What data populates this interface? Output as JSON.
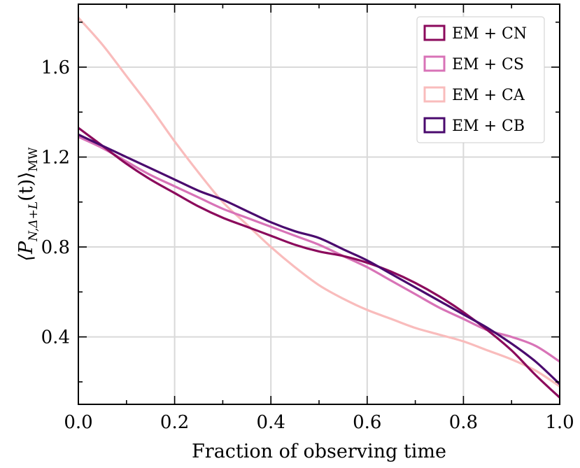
{
  "chart_data": {
    "type": "line",
    "title": "",
    "xlabel": "Fraction of observing time",
    "ylabel_main": "⟨P",
    "ylabel_sub": "N,Δ+L",
    "ylabel_mid": "(t)⟩",
    "ylabel_sub2": "MW",
    "xlim": [
      0.0,
      1.0
    ],
    "ylim": [
      0.1,
      1.88
    ],
    "xticks": [
      0.0,
      0.2,
      0.4,
      0.6,
      0.8,
      1.0
    ],
    "xtick_labels": [
      "0.0",
      "0.2",
      "0.4",
      "0.6",
      "0.8",
      "1.0"
    ],
    "yticks": [
      0.4,
      0.8,
      1.2,
      1.6
    ],
    "ytick_labels": [
      "0.4",
      "0.8",
      "1.2",
      "1.6"
    ],
    "grid": true,
    "legend_position": "top-right",
    "series": [
      {
        "name": "EM + CN",
        "color": "#8b0a5c",
        "x": [
          0.0,
          0.05,
          0.1,
          0.15,
          0.2,
          0.25,
          0.3,
          0.35,
          0.4,
          0.45,
          0.5,
          0.55,
          0.6,
          0.65,
          0.7,
          0.75,
          0.8,
          0.85,
          0.9,
          0.95,
          1.0
        ],
        "y": [
          1.33,
          1.25,
          1.17,
          1.1,
          1.04,
          0.98,
          0.93,
          0.89,
          0.85,
          0.81,
          0.78,
          0.76,
          0.73,
          0.69,
          0.64,
          0.58,
          0.51,
          0.43,
          0.34,
          0.23,
          0.13
        ]
      },
      {
        "name": "EM + CS",
        "color": "#d873b7",
        "x": [
          0.0,
          0.05,
          0.1,
          0.15,
          0.2,
          0.25,
          0.3,
          0.35,
          0.4,
          0.45,
          0.5,
          0.55,
          0.6,
          0.65,
          0.7,
          0.75,
          0.8,
          0.85,
          0.9,
          0.95,
          1.0
        ],
        "y": [
          1.29,
          1.24,
          1.18,
          1.12,
          1.07,
          1.02,
          0.97,
          0.93,
          0.89,
          0.85,
          0.81,
          0.76,
          0.71,
          0.65,
          0.59,
          0.53,
          0.48,
          0.43,
          0.4,
          0.36,
          0.29
        ]
      },
      {
        "name": "EM + CA",
        "color": "#f9bcbc",
        "x": [
          0.0,
          0.05,
          0.1,
          0.15,
          0.2,
          0.25,
          0.3,
          0.35,
          0.4,
          0.45,
          0.5,
          0.55,
          0.6,
          0.65,
          0.7,
          0.75,
          0.8,
          0.85,
          0.9,
          0.95,
          1.0
        ],
        "y": [
          1.82,
          1.7,
          1.56,
          1.42,
          1.27,
          1.13,
          1.0,
          0.9,
          0.8,
          0.71,
          0.63,
          0.57,
          0.52,
          0.48,
          0.44,
          0.41,
          0.38,
          0.34,
          0.3,
          0.25,
          0.18
        ]
      },
      {
        "name": "EM + CB",
        "color": "#4a0a6e",
        "x": [
          0.0,
          0.05,
          0.1,
          0.15,
          0.2,
          0.25,
          0.3,
          0.35,
          0.4,
          0.45,
          0.5,
          0.55,
          0.6,
          0.65,
          0.7,
          0.75,
          0.8,
          0.85,
          0.9,
          0.95,
          1.0
        ],
        "y": [
          1.3,
          1.25,
          1.2,
          1.15,
          1.1,
          1.05,
          1.01,
          0.96,
          0.91,
          0.87,
          0.84,
          0.79,
          0.74,
          0.68,
          0.62,
          0.56,
          0.5,
          0.44,
          0.37,
          0.29,
          0.19
        ]
      }
    ]
  }
}
